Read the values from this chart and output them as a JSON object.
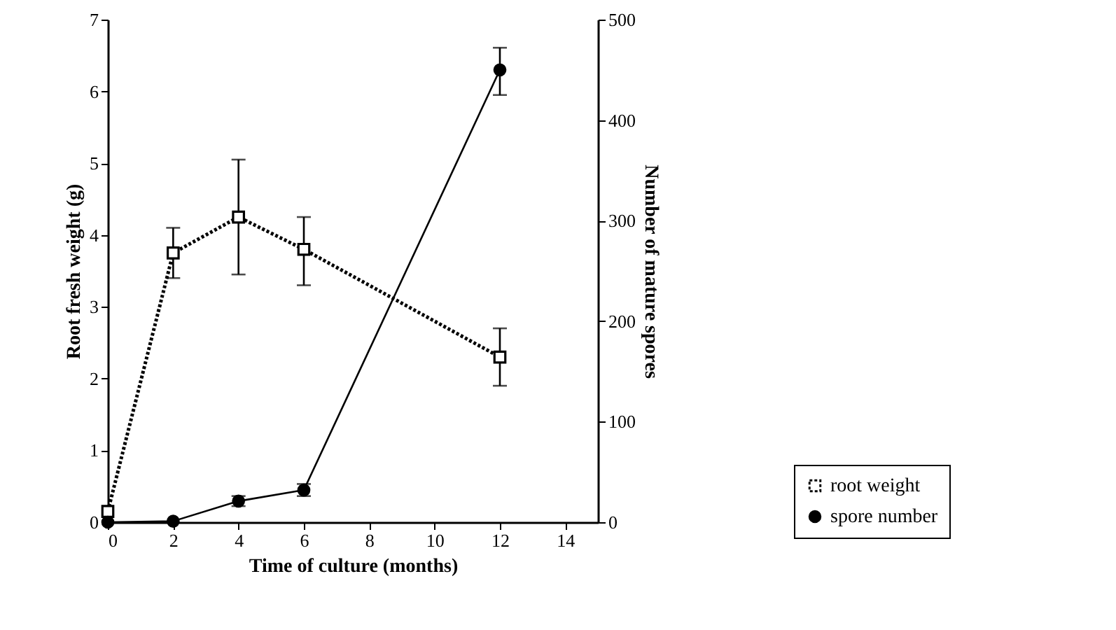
{
  "chart_data": {
    "type": "line",
    "xlabel": "Time of culture (months)",
    "ylabel": "Root fresh weight (g)",
    "y2label": "Number of mature spores",
    "x": [
      0,
      2,
      4,
      6,
      12
    ],
    "series": [
      {
        "name": "root weight",
        "color": "#000000",
        "values": [
          0.15,
          3.75,
          4.25,
          3.8,
          2.3
        ],
        "errors": [
          null,
          [
            3.4,
            4.1
          ],
          [
            3.45,
            5.05
          ],
          [
            3.3,
            4.25
          ],
          [
            1.9,
            2.7
          ]
        ],
        "marker": "square",
        "line_style": "dotted"
      },
      {
        "name": "spore number",
        "color": "#000000",
        "values": [
          0,
          1,
          21,
          32,
          450
        ],
        "errors": [
          null,
          null,
          [
            16,
            26
          ],
          [
            26,
            38
          ],
          [
            425,
            472
          ]
        ],
        "marker": "circle",
        "line_style": "solid",
        "axis": "y2"
      }
    ],
    "xlim": [
      0,
      15
    ],
    "xticks": [
      0,
      2,
      4,
      6,
      8,
      10,
      12,
      14
    ],
    "ylim": [
      0,
      7
    ],
    "yticks": [
      0,
      1,
      2,
      3,
      4,
      5,
      6,
      7
    ],
    "y2lim": [
      0,
      500
    ],
    "y2ticks": [
      0,
      100,
      200,
      300,
      400,
      500
    ],
    "legend": "bottom right",
    "grid": false
  }
}
